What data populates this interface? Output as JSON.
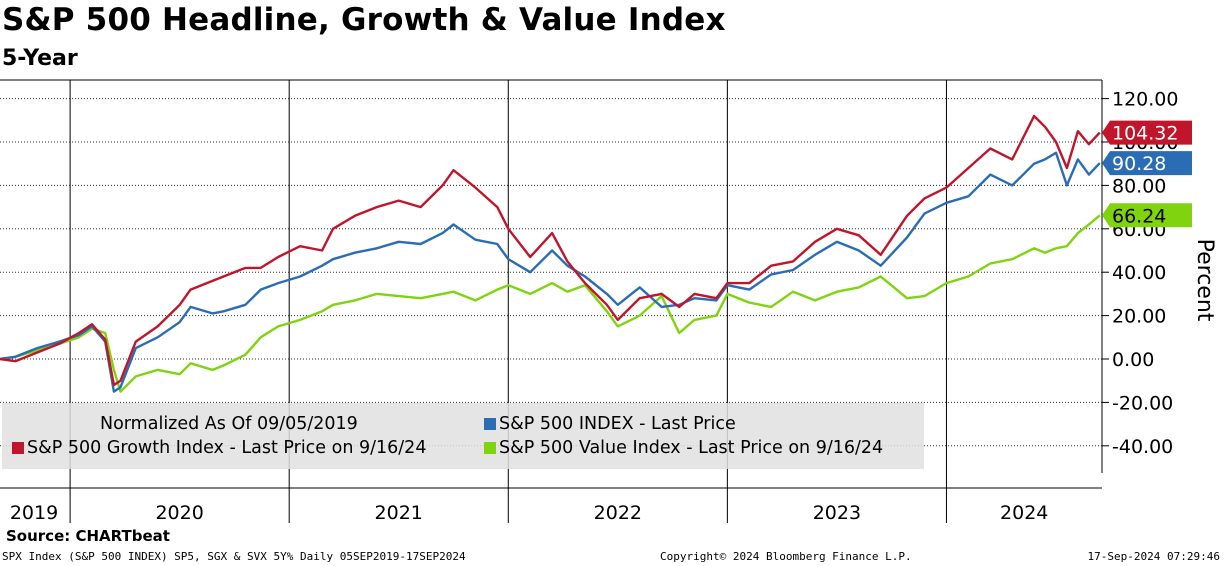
{
  "title": "S&P 500 Headline, Growth & Value Index",
  "subtitle": "5-Year",
  "source": "Source: CHARTbeat",
  "footer": {
    "left": "SPX Index (S&P 500 INDEX) SP5, SGX & SVX 5Y% Daily 05SEP2019-17SEP2024",
    "center": "Copyright© 2024 Bloomberg Finance L.P.",
    "right": "17-Sep-2024 07:29:46"
  },
  "legend": {
    "normalized": "Normalized As Of 09/05/2019",
    "items": [
      {
        "label": "S&P 500 INDEX - Last Price",
        "color": "#2a6db5"
      },
      {
        "label": "S&P 500 Growth Index - Last Price on 9/16/24",
        "color": "#c0152b"
      },
      {
        "label": "S&P 500 Value Index - Last Price on 9/16/24",
        "color": "#7fd40f"
      }
    ]
  },
  "colors": {
    "growth": "#c0152b",
    "headline": "#2a6db5",
    "value": "#7fd40f"
  },
  "chart_data": {
    "type": "line",
    "ylabel": "Percent",
    "ylim": [
      -50,
      130
    ],
    "yticks": [
      120,
      100,
      80,
      60,
      40,
      20,
      0,
      -20,
      -40
    ],
    "ytick_labels": [
      "120.00",
      "100.00",
      "80.00",
      "60.00",
      "40.00",
      "20.00",
      "0.00",
      "-20.00",
      "-40.00"
    ],
    "xlim": [
      2019.68,
      2024.71
    ],
    "year_lines": [
      2020,
      2021,
      2022,
      2023,
      2024
    ],
    "xtick_labels": [
      "2019",
      "2020",
      "2021",
      "2022",
      "2023",
      "2024"
    ],
    "grid": true,
    "series": [
      {
        "name": "S&P 500 Value Index - Last Price on 9/16/24",
        "key": "value",
        "color": "#7fd40f",
        "last_value": "66.24",
        "x": [
          2019.68,
          2019.75,
          2019.85,
          2019.95,
          2020.04,
          2020.1,
          2020.16,
          2020.2,
          2020.23,
          2020.3,
          2020.4,
          2020.5,
          2020.55,
          2020.65,
          2020.7,
          2020.8,
          2020.87,
          2020.95,
          2021.05,
          2021.15,
          2021.2,
          2021.3,
          2021.4,
          2021.5,
          2021.6,
          2021.7,
          2021.75,
          2021.85,
          2021.95,
          2022.0,
          2022.1,
          2022.2,
          2022.27,
          2022.35,
          2022.45,
          2022.5,
          2022.6,
          2022.7,
          2022.78,
          2022.85,
          2022.95,
          2023.0,
          2023.1,
          2023.2,
          2023.3,
          2023.4,
          2023.5,
          2023.6,
          2023.7,
          2023.82,
          2023.9,
          2024.0,
          2024.1,
          2024.2,
          2024.3,
          2024.4,
          2024.45,
          2024.5,
          2024.55,
          2024.6,
          2024.65,
          2024.7
        ],
        "y": [
          0,
          1,
          4,
          7,
          10,
          14,
          12,
          -5,
          -15,
          -8,
          -5,
          -7,
          -2,
          -5,
          -3,
          2,
          10,
          15,
          18,
          22,
          25,
          27,
          30,
          29,
          28,
          30,
          31,
          27,
          32,
          34,
          30,
          35,
          31,
          34,
          22,
          15,
          20,
          29,
          12,
          18,
          20,
          30,
          26,
          24,
          31,
          27,
          31,
          33,
          38,
          28,
          29,
          35,
          38,
          44,
          46,
          51,
          49,
          51,
          52,
          58,
          62,
          66.24
        ]
      },
      {
        "name": "S&P 500 INDEX - Last Price",
        "key": "headline",
        "color": "#2a6db5",
        "last_value": "90.28",
        "x": [
          2019.68,
          2019.75,
          2019.85,
          2019.95,
          2020.04,
          2020.1,
          2020.16,
          2020.2,
          2020.23,
          2020.3,
          2020.4,
          2020.5,
          2020.55,
          2020.65,
          2020.7,
          2020.8,
          2020.87,
          2020.95,
          2021.05,
          2021.15,
          2021.2,
          2021.3,
          2021.4,
          2021.5,
          2021.6,
          2021.7,
          2021.75,
          2021.85,
          2021.95,
          2022.0,
          2022.1,
          2022.2,
          2022.27,
          2022.35,
          2022.45,
          2022.5,
          2022.6,
          2022.7,
          2022.78,
          2022.85,
          2022.95,
          2023.0,
          2023.1,
          2023.2,
          2023.3,
          2023.4,
          2023.5,
          2023.6,
          2023.7,
          2023.82,
          2023.9,
          2024.0,
          2024.1,
          2024.2,
          2024.3,
          2024.4,
          2024.45,
          2024.5,
          2024.55,
          2024.6,
          2024.65,
          2024.7
        ],
        "y": [
          0,
          1,
          5,
          8,
          11,
          15,
          8,
          -15,
          -13,
          5,
          10,
          17,
          24,
          21,
          22,
          25,
          32,
          35,
          38,
          43,
          46,
          49,
          51,
          54,
          53,
          58,
          62,
          55,
          53,
          46,
          40,
          50,
          43,
          38,
          30,
          25,
          33,
          24,
          25,
          28,
          27,
          34,
          32,
          39,
          41,
          48,
          54,
          50,
          43,
          56,
          67,
          72,
          75,
          85,
          80,
          90,
          92,
          95,
          80,
          92,
          85,
          90.28
        ]
      },
      {
        "name": "S&P 500 Growth Index - Last Price on 9/16/24",
        "key": "growth",
        "color": "#c0152b",
        "last_value": "104.32",
        "x": [
          2019.68,
          2019.75,
          2019.85,
          2019.95,
          2020.04,
          2020.1,
          2020.16,
          2020.2,
          2020.23,
          2020.3,
          2020.4,
          2020.5,
          2020.55,
          2020.65,
          2020.7,
          2020.8,
          2020.87,
          2020.95,
          2021.05,
          2021.15,
          2021.2,
          2021.3,
          2021.4,
          2021.5,
          2021.6,
          2021.7,
          2021.75,
          2021.85,
          2021.95,
          2022.0,
          2022.1,
          2022.2,
          2022.27,
          2022.35,
          2022.45,
          2022.5,
          2022.6,
          2022.7,
          2022.78,
          2022.85,
          2022.95,
          2023.0,
          2023.1,
          2023.2,
          2023.3,
          2023.4,
          2023.5,
          2023.6,
          2023.7,
          2023.82,
          2023.9,
          2024.0,
          2024.1,
          2024.2,
          2024.3,
          2024.4,
          2024.45,
          2024.5,
          2024.55,
          2024.6,
          2024.65,
          2024.7
        ],
        "y": [
          0,
          -1,
          3,
          7,
          12,
          16,
          9,
          -12,
          -10,
          8,
          15,
          25,
          32,
          36,
          38,
          42,
          42,
          47,
          52,
          50,
          60,
          66,
          70,
          73,
          70,
          80,
          87,
          79,
          70,
          60,
          47,
          58,
          45,
          35,
          25,
          18,
          28,
          30,
          24,
          30,
          28,
          35,
          35,
          43,
          45,
          54,
          60,
          57,
          48,
          66,
          74,
          79,
          88,
          97,
          92,
          112,
          107,
          100,
          88,
          105,
          99,
          104.32
        ]
      }
    ]
  }
}
